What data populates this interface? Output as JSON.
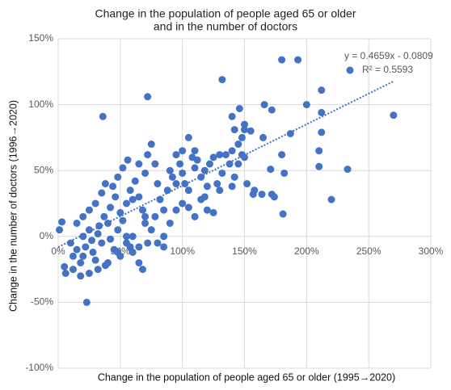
{
  "chart_data": {
    "type": "scatter",
    "title": [
      "Change in the population of people aged 65 or older",
      "and in the number of doctors"
    ],
    "x_label": "Change in the population of people aged 65 or older (1995→2020)",
    "y_label": "Change in the number of doctors (1996→2020)",
    "annotations": [
      "y = 0.4659x - 0.0809",
      "R² = 0.5593"
    ],
    "color": "#4472c4",
    "grid": true,
    "xlim": [
      0,
      300
    ],
    "ylim": [
      -100,
      150
    ],
    "xticks": [
      {
        "value": 0,
        "label": "0%"
      },
      {
        "value": 50,
        "label": "50%"
      },
      {
        "value": 100,
        "label": "100%"
      },
      {
        "value": 150,
        "label": "150%"
      },
      {
        "value": 200,
        "label": "200%"
      },
      {
        "value": 250,
        "label": "250%"
      },
      {
        "value": 300,
        "label": "300%"
      }
    ],
    "yticks": [
      {
        "value": -100,
        "label": "-100%"
      },
      {
        "value": -50,
        "label": "-50%"
      },
      {
        "value": 0,
        "label": "0%"
      },
      {
        "value": 50,
        "label": "50%"
      },
      {
        "value": 100,
        "label": "100%"
      },
      {
        "value": 150,
        "label": "150%"
      }
    ],
    "x": [
      10,
      12,
      15,
      18,
      20,
      22,
      25,
      28,
      30,
      32,
      35,
      38,
      40,
      42,
      45,
      48,
      50,
      52,
      55,
      58,
      15,
      20,
      25,
      30,
      35,
      38,
      42,
      46,
      50,
      55,
      58,
      60,
      12,
      18,
      25,
      32,
      40,
      48,
      55,
      60,
      65,
      20,
      27,
      33,
      37,
      44,
      48,
      52,
      56,
      62,
      65,
      68,
      70,
      72,
      75,
      78,
      65,
      70,
      72,
      75,
      78,
      80,
      82,
      85,
      88,
      90,
      92,
      95,
      98,
      100,
      102,
      105,
      108,
      110,
      112,
      115,
      118,
      120,
      122,
      125,
      128,
      130,
      132,
      135,
      138,
      140,
      142,
      145,
      148,
      150,
      152,
      155,
      158,
      80,
      85,
      90,
      95,
      100,
      105,
      110,
      115,
      120,
      125,
      60,
      65,
      70,
      85,
      95,
      100,
      105,
      110,
      118,
      130,
      145,
      150,
      140,
      23,
      36,
      72,
      132,
      180,
      193,
      270,
      233,
      220,
      200,
      212,
      212,
      212,
      210,
      210,
      182,
      181,
      172,
      157,
      164,
      174,
      166,
      171,
      187,
      172,
      180,
      68,
      5,
      6,
      3,
      1,
      148,
      142,
      146,
      140,
      150,
      165
    ],
    "values": [
      -5,
      -15,
      -10,
      -20,
      0,
      -8,
      5,
      -12,
      -18,
      2,
      -5,
      -22,
      10,
      -2,
      -10,
      5,
      -15,
      12,
      0,
      -8,
      10,
      15,
      20,
      25,
      33,
      40,
      22,
      30,
      18,
      25,
      35,
      28,
      -25,
      -30,
      -28,
      -25,
      -20,
      -12,
      -5,
      -12,
      -20,
      -15,
      -3,
      8,
      15,
      38,
      45,
      52,
      58,
      42,
      30,
      20,
      10,
      -5,
      5,
      15,
      55,
      48,
      62,
      70,
      55,
      40,
      28,
      20,
      35,
      50,
      45,
      62,
      55,
      48,
      40,
      35,
      60,
      52,
      58,
      45,
      30,
      38,
      55,
      60,
      40,
      35,
      48,
      62,
      55,
      38,
      45,
      55,
      62,
      60,
      40,
      80,
      35,
      -5,
      0,
      10,
      20,
      25,
      22,
      15,
      28,
      20,
      18,
      0,
      -8,
      15,
      -8,
      40,
      65,
      75,
      65,
      50,
      62,
      70,
      85,
      65,
      -50,
      91,
      106,
      119,
      134,
      134,
      92,
      51,
      28,
      100,
      111,
      94,
      79,
      65,
      53,
      48,
      17,
      32,
      32,
      32,
      30,
      100,
      51,
      78,
      96,
      62,
      -25,
      -23,
      -28,
      11,
      5,
      75,
      81,
      97,
      91,
      81,
      75
    ],
    "trendline": {
      "x": [
        0,
        270
      ],
      "values": [
        -8.09,
        117.7
      ]
    }
  }
}
